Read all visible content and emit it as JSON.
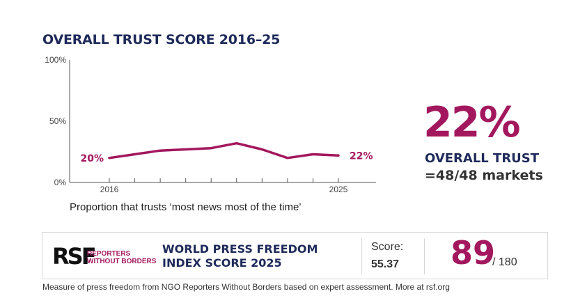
{
  "chart_data": {
    "type": "line",
    "title": "OVERALL TRUST SCORE 2016–25",
    "xlabel": "Proportion that trusts ‘most news most of the time’",
    "ylabel": "",
    "x": [
      2016,
      2017,
      2018,
      2019,
      2020,
      2021,
      2022,
      2023,
      2024,
      2025
    ],
    "x_tick_labels": [
      {
        "x": 2016,
        "label": "2016"
      },
      {
        "x": 2025,
        "label": "2025"
      }
    ],
    "ylim": [
      0,
      100
    ],
    "y_ticks": [
      {
        "value": 0,
        "label": "0%"
      },
      {
        "value": 50,
        "label": "50%"
      },
      {
        "value": 100,
        "label": "100%"
      }
    ],
    "series": [
      {
        "values": [
          20,
          23,
          26,
          27,
          28,
          32,
          27,
          20,
          23,
          22
        ],
        "color": "#a3175e"
      }
    ],
    "annotations": {
      "start": "20%",
      "end": "22%"
    },
    "grid": false
  },
  "highlight": {
    "value": "22%",
    "label": "OVERALL TRUST",
    "markets": "=48/48 markets"
  },
  "press_freedom": {
    "org_line1": "REPORTERS",
    "org_line2": "WITHOUT BORDERS",
    "logo_mark": "RSF",
    "title": "WORLD PRESS FREEDOM INDEX SCORE 2025",
    "score_label": "Score:",
    "score_value": "55.37",
    "rank": "89",
    "rank_total": "/ 180"
  },
  "footnote": "Measure of press freedom from NGO Reporters Without Borders based on expert assessment. More at rsf.org",
  "colors": {
    "accent": "#a3175e",
    "navy": "#1e2a5a"
  }
}
